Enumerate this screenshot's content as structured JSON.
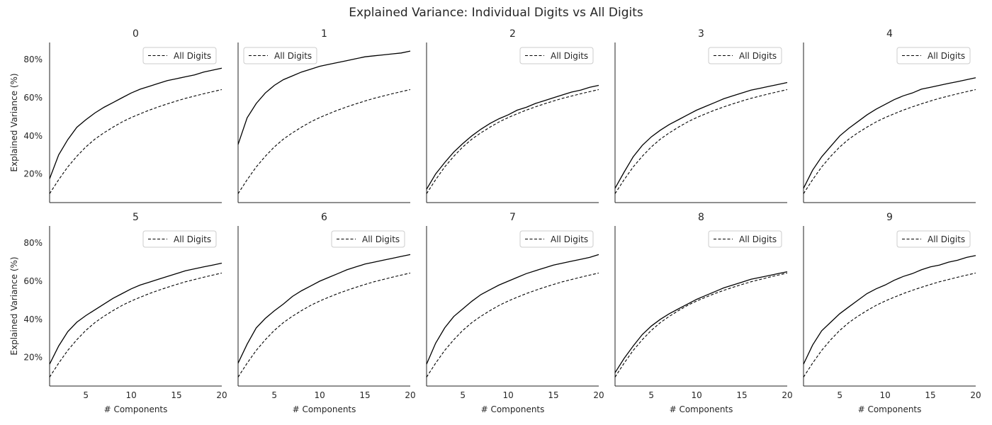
{
  "figure": {
    "title": "Explained Variance: Individual Digits vs All Digits"
  },
  "chart_data": {
    "type": "line",
    "layout": "small multiples, 2 rows x 5 columns, shared axes",
    "x": [
      1,
      2,
      3,
      4,
      5,
      6,
      7,
      8,
      9,
      10,
      11,
      12,
      13,
      14,
      15,
      16,
      17,
      18,
      19,
      20
    ],
    "xlim": [
      1,
      20
    ],
    "xticks": [
      5,
      10,
      15,
      20
    ],
    "xlabel": "# Components",
    "ylabel": "Explained Variance (%)",
    "ylim": [
      5,
      89
    ],
    "yticks": [
      20,
      40,
      60,
      80
    ],
    "ytick_format": "{}%",
    "grid": false,
    "legend_placement": "top-right",
    "legend_label": "All Digits",
    "colors": {
      "individual": "#000000",
      "all_digits": "#000000"
    },
    "all_digits_values": [
      9.7,
      17.0,
      23.7,
      29.3,
      34.2,
      38.3,
      41.6,
      44.6,
      47.3,
      49.6,
      51.6,
      53.5,
      55.2,
      56.8,
      58.3,
      59.7,
      60.9,
      62.1,
      63.2,
      64.3
    ],
    "panels": [
      {
        "title": "0",
        "values": [
          17.5,
          30.0,
          38.0,
          44.5,
          48.5,
          52.0,
          55.0,
          57.5,
          60.0,
          62.5,
          64.5,
          66.0,
          67.5,
          69.0,
          70.0,
          71.0,
          72.0,
          73.5,
          74.5,
          75.5
        ]
      },
      {
        "title": "1",
        "values": [
          35.5,
          49.5,
          57.0,
          62.5,
          66.5,
          69.5,
          71.5,
          73.5,
          75.0,
          76.5,
          77.5,
          78.5,
          79.5,
          80.5,
          81.5,
          82.0,
          82.5,
          83.0,
          83.5,
          84.5
        ]
      },
      {
        "title": "2",
        "values": [
          12.0,
          20.0,
          26.0,
          31.5,
          36.0,
          40.0,
          43.5,
          46.5,
          49.0,
          51.0,
          53.5,
          55.0,
          57.0,
          58.5,
          60.0,
          61.5,
          63.0,
          64.0,
          65.5,
          66.5
        ]
      },
      {
        "title": "3",
        "values": [
          12.5,
          21.0,
          29.0,
          35.0,
          39.5,
          43.0,
          46.0,
          48.5,
          51.0,
          53.5,
          55.5,
          57.5,
          59.5,
          61.0,
          62.5,
          64.0,
          65.0,
          66.0,
          67.0,
          68.0
        ]
      },
      {
        "title": "4",
        "values": [
          12.5,
          22.0,
          29.0,
          34.5,
          40.0,
          44.0,
          47.5,
          51.0,
          54.0,
          56.5,
          59.0,
          61.0,
          62.5,
          64.5,
          65.5,
          66.5,
          67.5,
          68.5,
          69.5,
          70.5
        ]
      },
      {
        "title": "5",
        "values": [
          16.5,
          26.0,
          33.5,
          38.5,
          42.0,
          45.0,
          48.0,
          51.0,
          53.5,
          56.0,
          58.0,
          59.5,
          61.0,
          62.5,
          64.0,
          65.5,
          66.5,
          67.5,
          68.5,
          69.5
        ]
      },
      {
        "title": "6",
        "values": [
          17.0,
          27.0,
          35.5,
          40.5,
          44.5,
          48.0,
          52.0,
          55.0,
          57.5,
          60.0,
          62.0,
          64.0,
          66.0,
          67.5,
          69.0,
          70.0,
          71.0,
          72.0,
          73.0,
          74.0
        ]
      },
      {
        "title": "7",
        "values": [
          16.5,
          27.5,
          35.5,
          41.5,
          45.5,
          49.5,
          53.0,
          55.5,
          58.0,
          60.0,
          62.0,
          64.0,
          65.5,
          67.0,
          68.5,
          69.5,
          70.5,
          71.5,
          72.5,
          74.0
        ]
      },
      {
        "title": "8",
        "values": [
          12.0,
          19.5,
          26.0,
          32.0,
          36.5,
          40.0,
          43.0,
          45.5,
          48.0,
          50.5,
          52.5,
          54.5,
          56.5,
          58.0,
          59.5,
          61.0,
          62.0,
          63.0,
          64.0,
          65.0
        ]
      },
      {
        "title": "9",
        "values": [
          16.5,
          26.5,
          34.0,
          38.5,
          43.0,
          46.5,
          50.0,
          53.5,
          56.0,
          58.0,
          60.5,
          62.5,
          64.0,
          66.0,
          67.5,
          68.5,
          70.0,
          71.0,
          72.5,
          73.5
        ]
      }
    ]
  }
}
